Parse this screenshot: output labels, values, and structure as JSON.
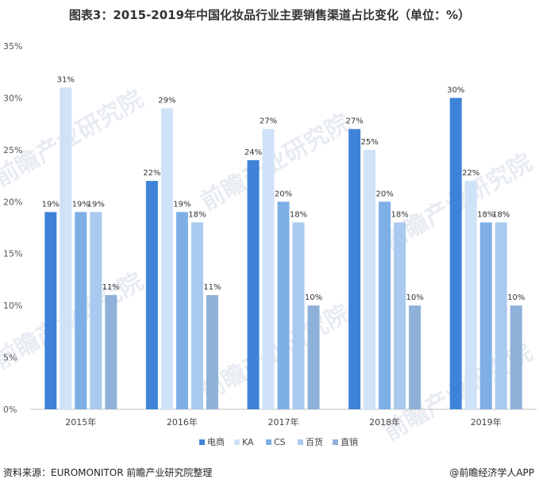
{
  "title": "图表3：2015-2019年中国化妆品行业主要销售渠道占比变化（单位：%）",
  "source": "资料来源：EUROMONITOR 前瞻产业研究院整理",
  "credit": "@前瞻经济学人APP",
  "watermark": "前瞻产业研究院",
  "chart_data": {
    "type": "bar",
    "categories": [
      "2015年",
      "2016年",
      "2017年",
      "2018年",
      "2019年"
    ],
    "series": [
      {
        "name": "电商",
        "color": "#3f83d9",
        "values": [
          19,
          22,
          24,
          27,
          30
        ]
      },
      {
        "name": "KA",
        "color": "#cfe2f7",
        "values": [
          31,
          29,
          27,
          25,
          22
        ]
      },
      {
        "name": "CS",
        "color": "#7eaee6",
        "values": [
          19,
          19,
          20,
          20,
          18
        ]
      },
      {
        "name": "百货",
        "color": "#a9c9ef",
        "values": [
          19,
          18,
          18,
          18,
          18
        ]
      },
      {
        "name": "直销",
        "color": "#8fb1d9",
        "values": [
          11,
          11,
          10,
          10,
          10
        ]
      }
    ],
    "ylim": [
      0,
      35
    ],
    "yticks": [
      0,
      5,
      10,
      15,
      20,
      25,
      30,
      35
    ],
    "ytick_labels": [
      "0%",
      "5%",
      "10%",
      "15%",
      "20%",
      "25%",
      "30%",
      "35%"
    ],
    "value_suffix": "%",
    "xlabel": "",
    "ylabel": "",
    "grid": false,
    "legend_position": "bottom"
  }
}
